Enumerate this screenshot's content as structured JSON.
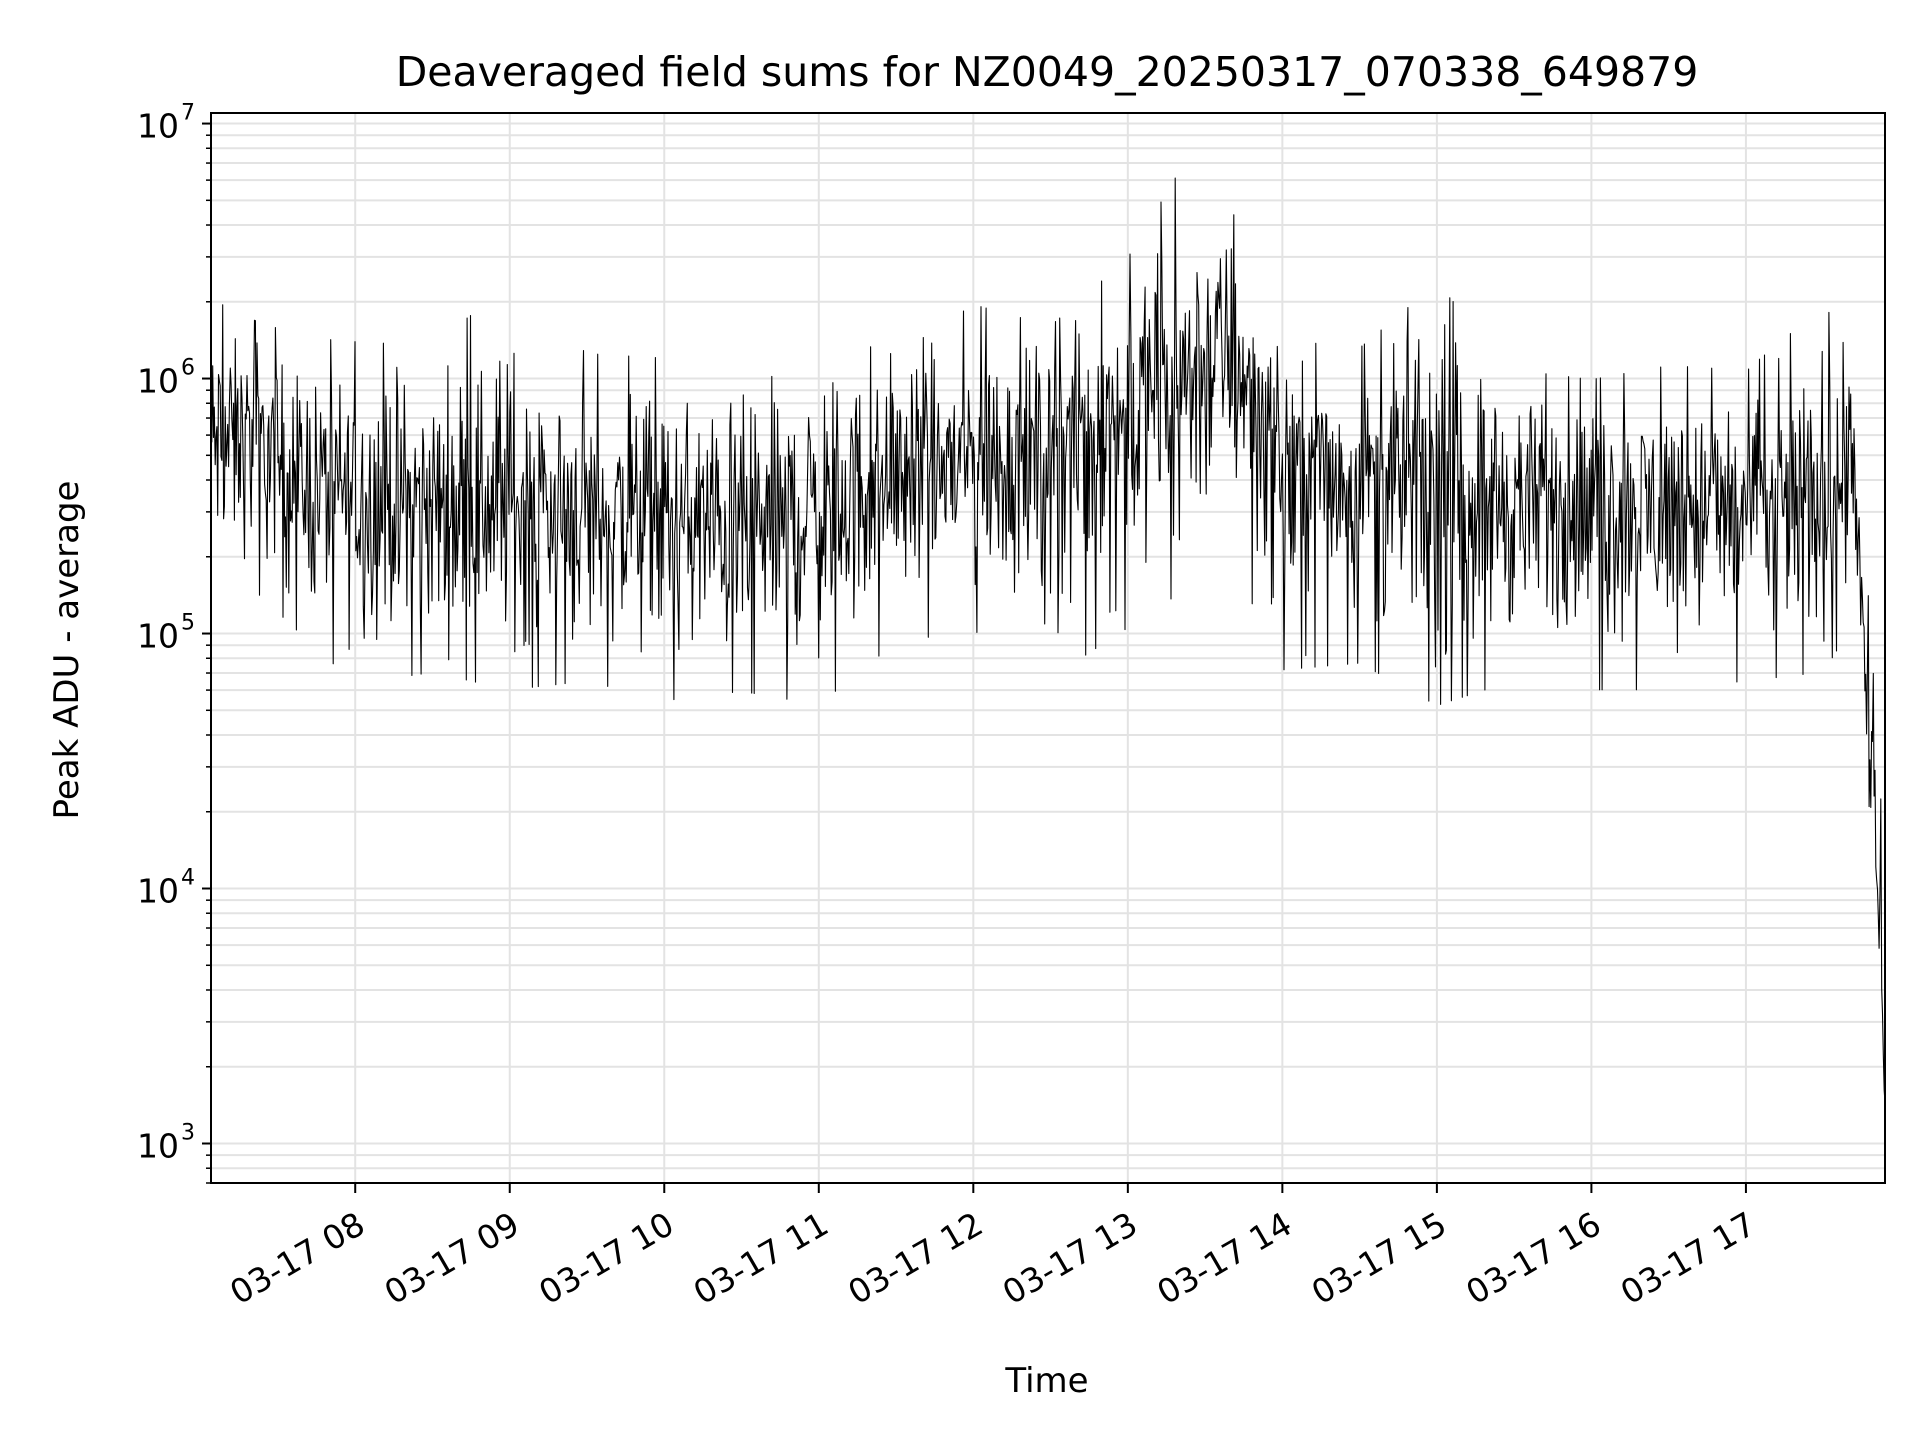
{
  "chart_data": {
    "type": "line",
    "title": "Deaveraged field sums for NZ0049_20250317_070338_649879",
    "xlabel": "Time",
    "ylabel": "Peak ADU - average",
    "yscale": "log",
    "ylim": [
      700,
      11000000
    ],
    "xlim": [
      "2025-03-17 07:04",
      "2025-03-17 17:54"
    ],
    "grid": true,
    "line_color": "#000000",
    "x_ticks": [
      {
        "t": "2025-03-17 08:00",
        "label": "03-17 08"
      },
      {
        "t": "2025-03-17 09:00",
        "label": "03-17 09"
      },
      {
        "t": "2025-03-17 10:00",
        "label": "03-17 10"
      },
      {
        "t": "2025-03-17 11:00",
        "label": "03-17 11"
      },
      {
        "t": "2025-03-17 12:00",
        "label": "03-17 12"
      },
      {
        "t": "2025-03-17 13:00",
        "label": "03-17 13"
      },
      {
        "t": "2025-03-17 14:00",
        "label": "03-17 14"
      },
      {
        "t": "2025-03-17 15:00",
        "label": "03-17 15"
      },
      {
        "t": "2025-03-17 16:00",
        "label": "03-17 16"
      },
      {
        "t": "2025-03-17 17:00",
        "label": "03-17 17"
      }
    ],
    "y_ticks": [
      {
        "value": 1000,
        "base": "10",
        "exp": "3"
      },
      {
        "value": 10000,
        "base": "10",
        "exp": "4"
      },
      {
        "value": 100000,
        "base": "10",
        "exp": "5"
      },
      {
        "value": 1000000,
        "base": "10",
        "exp": "6"
      },
      {
        "value": 10000000,
        "base": "10",
        "exp": "7"
      }
    ],
    "series": [
      {
        "x": [
          "2025-03-17 07:04",
          "2025-03-17 07:20",
          "2025-03-17 07:40",
          "2025-03-17 08:00",
          "2025-03-17 08:30",
          "2025-03-17 09:00",
          "2025-03-17 09:30",
          "2025-03-17 10:00",
          "2025-03-17 10:30",
          "2025-03-17 11:00",
          "2025-03-17 11:30",
          "2025-03-17 12:00",
          "2025-03-17 12:30",
          "2025-03-17 13:00",
          "2025-03-17 13:20",
          "2025-03-17 13:40",
          "2025-03-17 14:00",
          "2025-03-17 14:30",
          "2025-03-17 15:00",
          "2025-03-17 15:30",
          "2025-03-17 16:00",
          "2025-03-17 16:30",
          "2025-03-17 17:00",
          "2025-03-17 17:30",
          "2025-03-17 17:42",
          "2025-03-17 17:46",
          "2025-03-17 17:50",
          "2025-03-17 17:54"
        ],
        "y": [
          550000,
          600000,
          400000,
          350000,
          320000,
          330000,
          300000,
          280000,
          250000,
          300000,
          450000,
          480000,
          550000,
          750000,
          950000,
          1450000,
          500000,
          420000,
          380000,
          340000,
          330000,
          330000,
          310000,
          330000,
          700000,
          60000,
          20000,
          1500
        ],
        "peaks": [
          2200000,
          1800000,
          1550000,
          1500000,
          1450000,
          2600000,
          1350000,
          1300000,
          1250000,
          1700000,
          1300000,
          2100000,
          1700000,
          3200000,
          7200000,
          5000000,
          1500000,
          1400000,
          2600000,
          1150000,
          1050000,
          1200000,
          1150000,
          2100000,
          1500000,
          400000,
          250000,
          5000
        ],
        "troughs": [
          120000,
          140000,
          90000,
          58000,
          65000,
          55000,
          60000,
          50000,
          55000,
          48000,
          85000,
          95000,
          60000,
          95000,
          130000,
          180000,
          65000,
          70000,
          47000,
          60000,
          55000,
          55000,
          60000,
          65000,
          100000,
          23000,
          8000,
          1000
        ]
      }
    ]
  }
}
